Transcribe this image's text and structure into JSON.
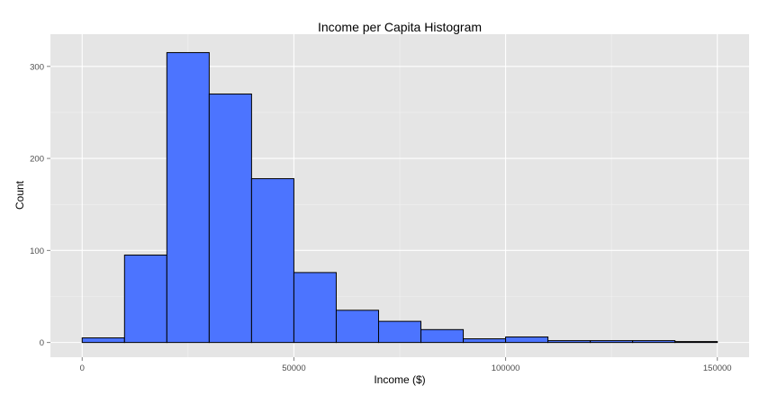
{
  "chart_data": {
    "type": "bar",
    "title": "Income per Capita Histogram",
    "xlabel": "Income ($)",
    "ylabel": "Count",
    "bins": [
      {
        "x0": 0,
        "x1": 10000,
        "count": 5
      },
      {
        "x0": 10000,
        "x1": 20000,
        "count": 95
      },
      {
        "x0": 20000,
        "x1": 30000,
        "count": 315
      },
      {
        "x0": 30000,
        "x1": 40000,
        "count": 270
      },
      {
        "x0": 40000,
        "x1": 50000,
        "count": 178
      },
      {
        "x0": 50000,
        "x1": 60000,
        "count": 76
      },
      {
        "x0": 60000,
        "x1": 70000,
        "count": 35
      },
      {
        "x0": 70000,
        "x1": 80000,
        "count": 23
      },
      {
        "x0": 80000,
        "x1": 90000,
        "count": 14
      },
      {
        "x0": 90000,
        "x1": 100000,
        "count": 4
      },
      {
        "x0": 100000,
        "x1": 110000,
        "count": 6
      },
      {
        "x0": 110000,
        "x1": 120000,
        "count": 2
      },
      {
        "x0": 120000,
        "x1": 130000,
        "count": 2
      },
      {
        "x0": 130000,
        "x1": 140000,
        "count": 2
      },
      {
        "x0": 140000,
        "x1": 150000,
        "count": 1
      }
    ],
    "xlim": [
      -7500,
      157500
    ],
    "ylim": [
      -16,
      335
    ],
    "x_ticks": [
      0,
      50000,
      100000,
      150000
    ],
    "x_tick_labels": [
      "0",
      "50000",
      "100000",
      "150000"
    ],
    "y_ticks": [
      0,
      100,
      200,
      300
    ],
    "y_tick_labels": [
      "0",
      "100",
      "200",
      "300"
    ],
    "grid": true,
    "legend": "none",
    "colors": {
      "bar_fill": "#4c74ff",
      "bar_stroke": "#000000",
      "panel_bg": "#e5e5e5",
      "grid_major": "#ffffff",
      "grid_minor": "#f2f2f2"
    }
  }
}
